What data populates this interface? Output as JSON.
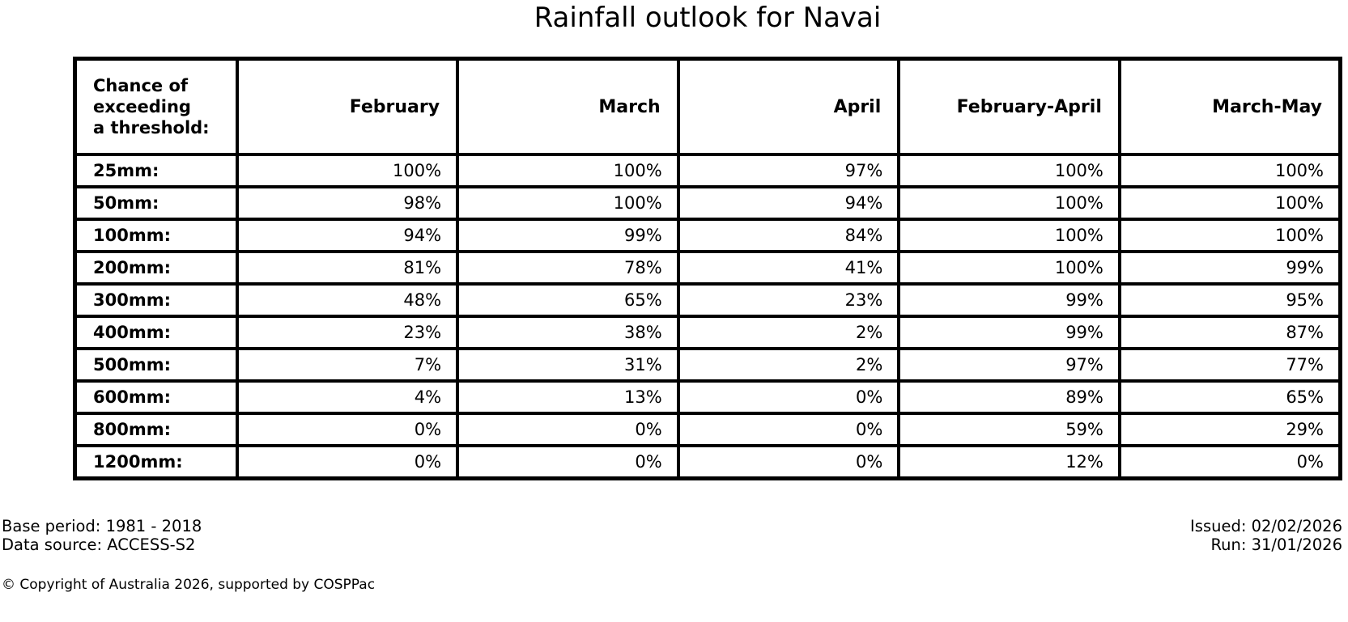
{
  "title": "Rainfall outlook for Navai",
  "table": {
    "corner_header": "Chance of\nexceeding\na threshold:",
    "columns": [
      "February",
      "March",
      "April",
      "February-April",
      "March-May"
    ],
    "rows": [
      {
        "label": "25mm:",
        "values": [
          "100%",
          "100%",
          "97%",
          "100%",
          "100%"
        ]
      },
      {
        "label": "50mm:",
        "values": [
          "98%",
          "100%",
          "94%",
          "100%",
          "100%"
        ]
      },
      {
        "label": "100mm:",
        "values": [
          "94%",
          "99%",
          "84%",
          "100%",
          "100%"
        ]
      },
      {
        "label": "200mm:",
        "values": [
          "81%",
          "78%",
          "41%",
          "100%",
          "99%"
        ]
      },
      {
        "label": "300mm:",
        "values": [
          "48%",
          "65%",
          "23%",
          "99%",
          "95%"
        ]
      },
      {
        "label": "400mm:",
        "values": [
          "23%",
          "38%",
          "2%",
          "99%",
          "87%"
        ]
      },
      {
        "label": "500mm:",
        "values": [
          "7%",
          "31%",
          "2%",
          "97%",
          "77%"
        ]
      },
      {
        "label": "600mm:",
        "values": [
          "4%",
          "13%",
          "0%",
          "89%",
          "65%"
        ]
      },
      {
        "label": "800mm:",
        "values": [
          "0%",
          "0%",
          "0%",
          "59%",
          "29%"
        ]
      },
      {
        "label": "1200mm:",
        "values": [
          "0%",
          "0%",
          "0%",
          "12%",
          "0%"
        ]
      }
    ]
  },
  "footer": {
    "base_period": "Base period: 1981 - 2018",
    "data_source": "Data source: ACCESS-S2",
    "issued": "Issued: 02/02/2026",
    "run": "Run: 31/01/2026",
    "copyright": "© Copyright of Australia 2026, supported by COSPPac"
  },
  "chart_data": {
    "type": "table",
    "title": "Rainfall outlook for Navai",
    "row_header": "Chance of exceeding a threshold:",
    "columns": [
      "February",
      "March",
      "April",
      "February-April",
      "March-May"
    ],
    "thresholds_mm": [
      25,
      50,
      100,
      200,
      300,
      400,
      500,
      600,
      800,
      1200
    ],
    "values_percent": [
      [
        100,
        100,
        97,
        100,
        100
      ],
      [
        98,
        100,
        94,
        100,
        100
      ],
      [
        94,
        99,
        84,
        100,
        100
      ],
      [
        81,
        78,
        41,
        100,
        99
      ],
      [
        48,
        65,
        23,
        99,
        95
      ],
      [
        23,
        38,
        2,
        99,
        87
      ],
      [
        7,
        31,
        2,
        97,
        77
      ],
      [
        4,
        13,
        0,
        89,
        65
      ],
      [
        0,
        0,
        0,
        59,
        29
      ],
      [
        0,
        0,
        0,
        12,
        0
      ]
    ],
    "base_period": "1981 - 2018",
    "data_source": "ACCESS-S2",
    "issued": "02/02/2026",
    "run": "31/01/2026"
  }
}
